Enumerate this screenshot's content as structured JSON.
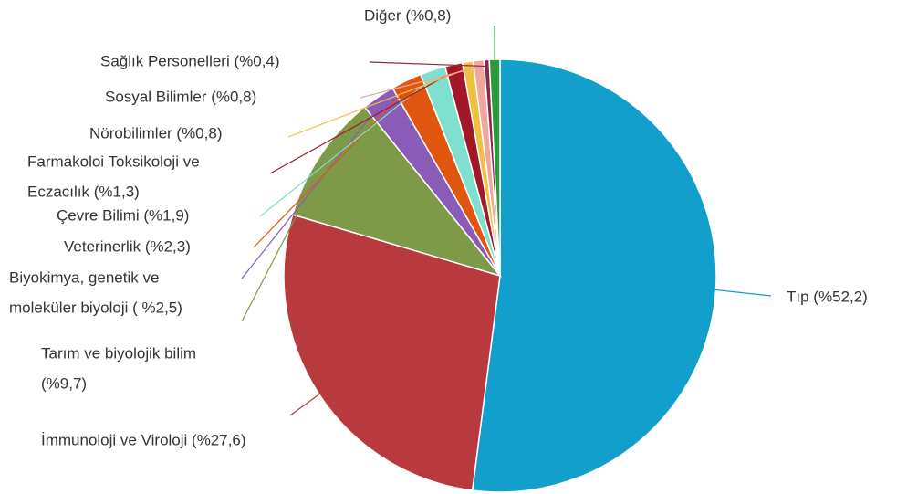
{
  "chart_data": {
    "type": "pie",
    "categories": [
      [
        "Tıp (%52,2)"
      ],
      [
        "İmmunoloji ve Viroloji (%27,6)"
      ],
      [
        "Tarım ve biyolojik bilim",
        "(%9,7)"
      ],
      [
        "Biyokimya, genetik ve",
        "moleküler biyoloji ( %2,5)"
      ],
      [
        "Veterinerlik (%2,3)"
      ],
      [
        "Çevre Bilimi (%1,9)"
      ],
      [
        "Farmakoloi Toksikoloji ve",
        "Eczacılık (%1,3)"
      ],
      [
        "Nörobilimler (%0,8)"
      ],
      [
        "Sosyal Bilimler (%0,8)"
      ],
      [
        "Sağlık Personelleri (%0,4)"
      ],
      [
        "Diğer (%0,8)"
      ]
    ],
    "values": [
      52.2,
      27.6,
      9.7,
      2.5,
      2.3,
      1.9,
      1.3,
      0.8,
      0.8,
      0.4,
      0.8
    ],
    "colors": [
      "#129fcc",
      "#b8393e",
      "#7e9a48",
      "#8a5cb8",
      "#e0560f",
      "#7fe0cf",
      "#a1182b",
      "#f0c040",
      "#f2a6a0",
      "#8a2a4a",
      "#2a9a3a"
    ]
  }
}
